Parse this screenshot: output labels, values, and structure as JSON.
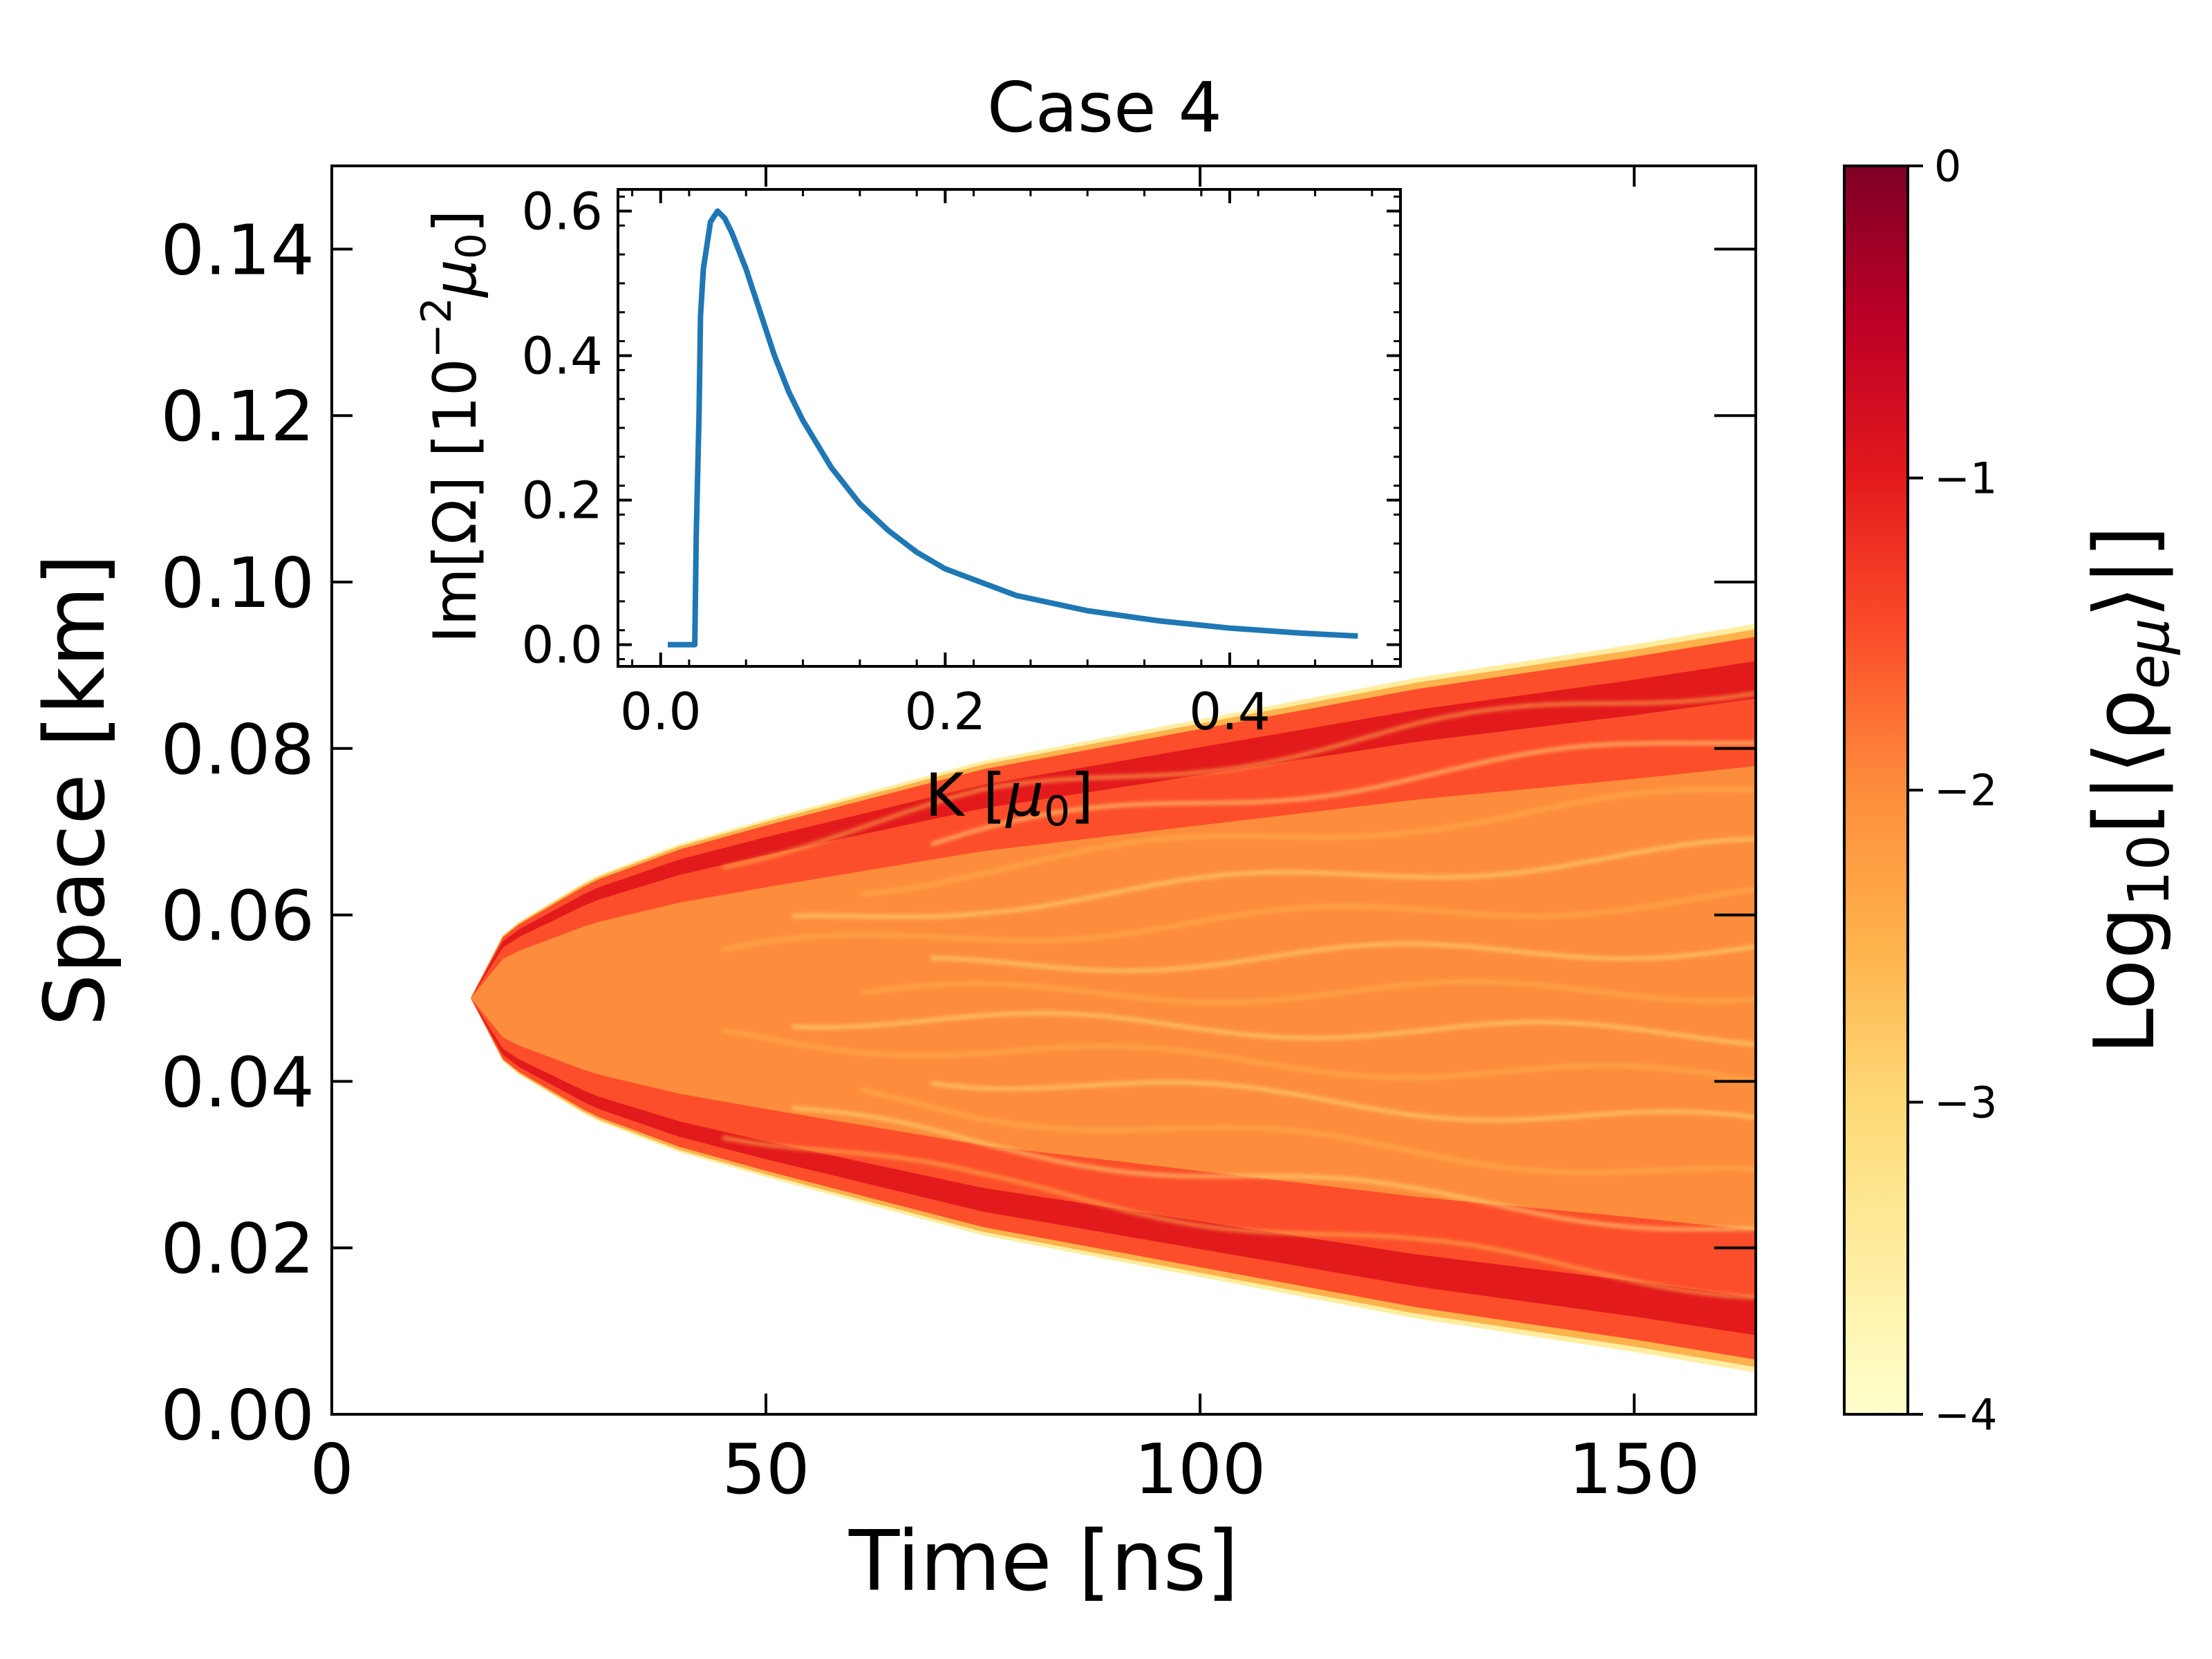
{
  "chart_data": [
    {
      "type": "heatmap",
      "title": "Case 4",
      "xlabel": "Time [ns]",
      "ylabel": "Space [km]",
      "xlim": [
        0,
        164
      ],
      "ylim": [
        0,
        0.15
      ],
      "xticks": [
        0,
        50,
        100,
        150
      ],
      "xtick_labels": [
        "0",
        "50",
        "100",
        "150"
      ],
      "yticks": [
        0.0,
        0.02,
        0.04,
        0.06,
        0.08,
        0.1,
        0.12,
        0.14
      ],
      "ytick_labels": [
        "0.00",
        "0.02",
        "0.04",
        "0.06",
        "0.08",
        "0.10",
        "0.12",
        "0.14"
      ],
      "colormap": "YlOrRd",
      "colormap_stops": [
        "#ffffcc",
        "#ffeda0",
        "#fed976",
        "#feb24c",
        "#fd8d3c",
        "#fc4e2a",
        "#e31a1c",
        "#bd0026",
        "#800026"
      ],
      "colorbar": {
        "label": "Log10[|⟨ρeμ⟩|]",
        "label_main": "Log",
        "label_sub": "10",
        "label_body": "[|⟨ρ",
        "label_sub2": "eμ",
        "label_end": "⟩|]",
        "range": [
          -4,
          0
        ],
        "ticks": [
          0,
          -1,
          -2,
          -3,
          -4
        ],
        "tick_labels": [
          "0",
          "−1",
          "−2",
          "−3",
          "−4"
        ]
      },
      "region": {
        "onset_time": 16,
        "center": 0.05,
        "edge_points": [
          {
            "t": 16,
            "half_width": 0.0
          },
          {
            "t": 20,
            "half_width": 0.0082
          },
          {
            "t": 30,
            "half_width": 0.0145
          },
          {
            "t": 40,
            "half_width": 0.0185
          },
          {
            "t": 50,
            "half_width": 0.0215
          },
          {
            "t": 75,
            "half_width": 0.0285
          },
          {
            "t": 100,
            "half_width": 0.0335
          },
          {
            "t": 125,
            "half_width": 0.0385
          },
          {
            "t": 150,
            "half_width": 0.0425
          },
          {
            "t": 164,
            "half_width": 0.045
          }
        ]
      }
    },
    {
      "type": "line",
      "role": "inset",
      "xlabel": "K [μ0]",
      "xlabel_main": "K [",
      "xlabel_mu": "μ",
      "xlabel_sub": "0",
      "xlabel_end": "]",
      "ylabel": "Im[Ω] [10^−2 μ0]",
      "ylabel_main": "Im[Ω] [10",
      "ylabel_sup": "−2",
      "ylabel_mu": "μ",
      "ylabel_sub": "0",
      "ylabel_end": "]",
      "xlim": [
        -0.03,
        0.52
      ],
      "ylim": [
        -0.03,
        0.63
      ],
      "xticks": [
        0.0,
        0.2,
        0.4
      ],
      "xtick_labels": [
        "0.0",
        "0.2",
        "0.4"
      ],
      "yticks": [
        0.0,
        0.2,
        0.4,
        0.6
      ],
      "ytick_labels": [
        "0.0",
        "0.2",
        "0.4",
        "0.6"
      ],
      "color": "#1f77b4",
      "series": [
        {
          "name": "Im[Ω]",
          "x": [
            0.005,
            0.024,
            0.025,
            0.027,
            0.028,
            0.03,
            0.035,
            0.04,
            0.045,
            0.05,
            0.06,
            0.07,
            0.08,
            0.09,
            0.1,
            0.12,
            0.14,
            0.16,
            0.18,
            0.2,
            0.25,
            0.3,
            0.35,
            0.4,
            0.45,
            0.49
          ],
          "y": [
            0.0,
            0.0,
            0.15,
            0.32,
            0.455,
            0.52,
            0.585,
            0.6,
            0.59,
            0.57,
            0.52,
            0.46,
            0.4,
            0.35,
            0.31,
            0.245,
            0.195,
            0.158,
            0.128,
            0.105,
            0.068,
            0.047,
            0.033,
            0.023,
            0.016,
            0.012
          ]
        }
      ]
    }
  ]
}
